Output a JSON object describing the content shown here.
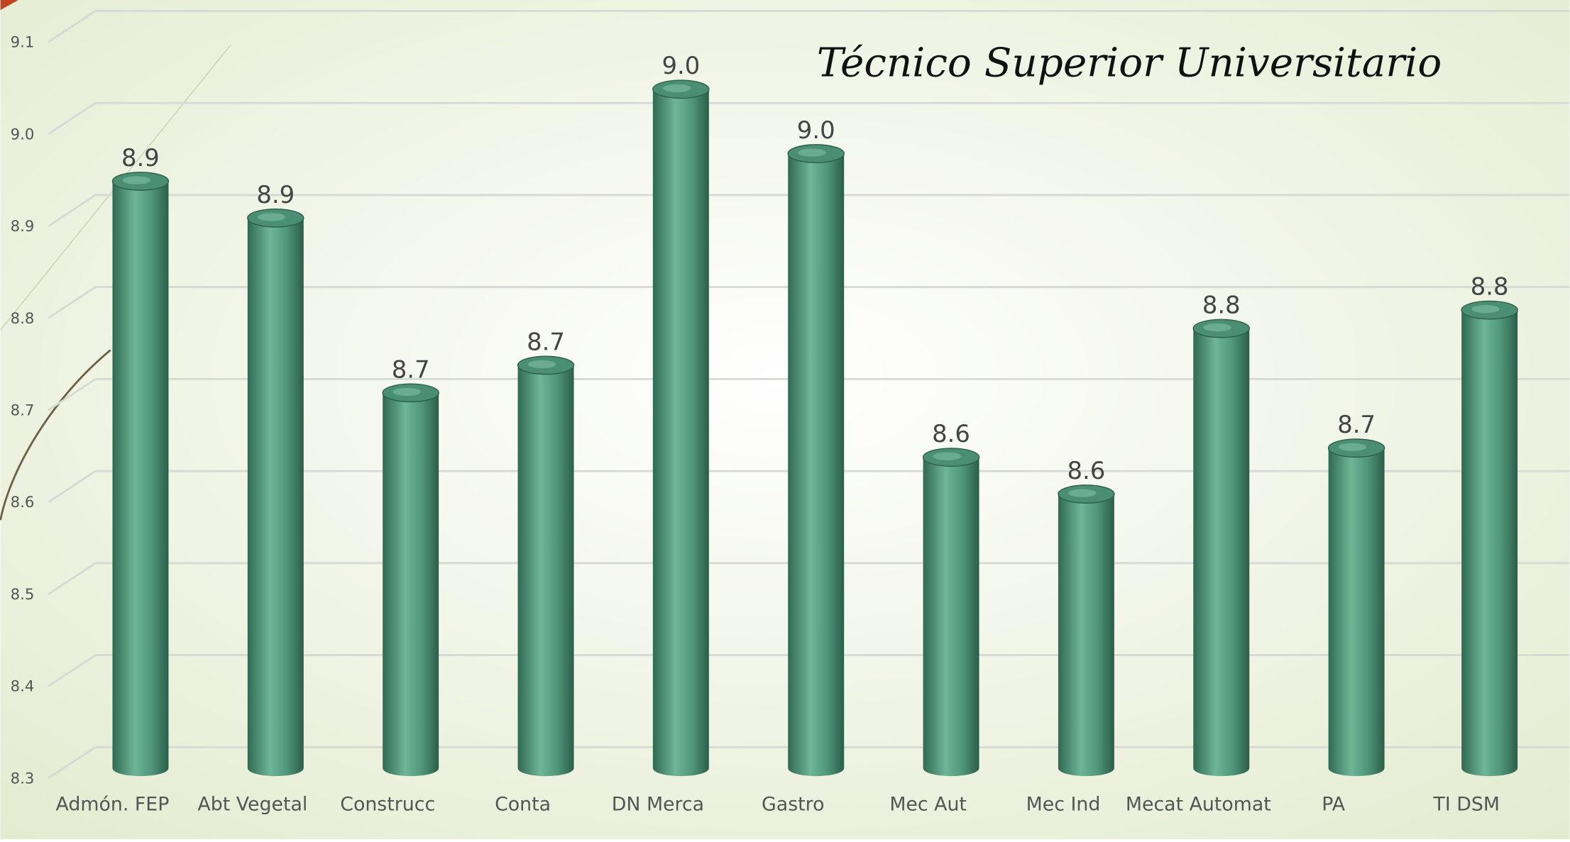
{
  "chart_data": {
    "type": "bar",
    "title": "Técnico Superior Universitario",
    "categories": [
      "Admón. FEP",
      "Abt Vegetal",
      "Construcc",
      "Conta",
      "DN Merca",
      "Gastro",
      "Mec Aut",
      "Mec Ind",
      "Mecat Automat",
      "PA",
      "TI DSM"
    ],
    "values": [
      8.94,
      8.9,
      8.71,
      8.74,
      9.04,
      8.97,
      8.64,
      8.6,
      8.78,
      8.65,
      8.8
    ],
    "value_labels": [
      "8.9",
      "8.9",
      "8.7",
      "8.7",
      "9.0",
      "9.0",
      "8.6",
      "8.6",
      "8.8",
      "8.7",
      "8.8"
    ],
    "color": "#3f8a6c",
    "ylim": [
      8.3,
      9.1
    ],
    "yticks": [
      8.3,
      8.4,
      8.5,
      8.6,
      8.7,
      8.8,
      8.9,
      {
        "value": 9,
        "label": "9.0"
      },
      9.1
    ],
    "grid": true
  }
}
